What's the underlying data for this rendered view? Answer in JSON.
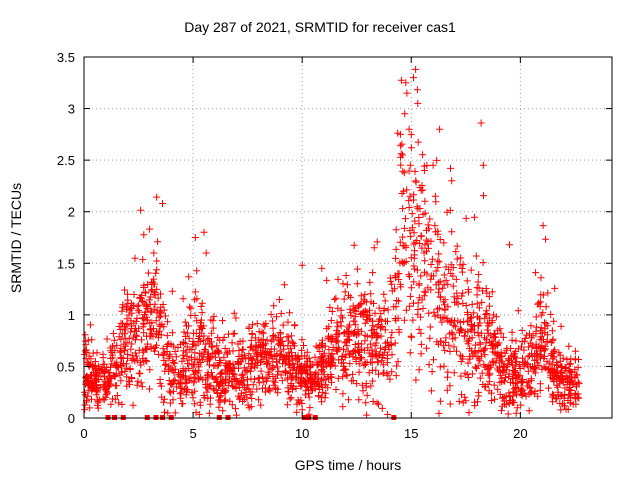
{
  "chart_data": {
    "type": "scatter",
    "title": "Day 287 of 2021, SRMTID for receiver cas1",
    "xlabel": "GPS time / hours",
    "ylabel": "SRMTID / TECUs",
    "xlim": [
      0,
      24.2
    ],
    "ylim": [
      0,
      3.5
    ],
    "xticks": [
      0,
      5,
      10,
      15,
      20
    ],
    "yticks": [
      0,
      0.5,
      1,
      1.5,
      2,
      2.5,
      3,
      3.5
    ],
    "xtick_labels": [
      "0",
      "5",
      "10",
      "15",
      "20"
    ],
    "ytick_labels": [
      "0",
      "0.5",
      "1",
      "1.5",
      "2",
      "2.5",
      "3",
      "3.5"
    ],
    "grid": true,
    "marker": "plus",
    "color": "#ff0000",
    "zero_square_markers_x": [
      1.1,
      1.4,
      1.8,
      2.9,
      3.3,
      3.6,
      4.0,
      6.2,
      6.6,
      10.1,
      10.3,
      10.6,
      14.2
    ],
    "envelope": [
      [
        0.0,
        0.45,
        0.18
      ],
      [
        0.3,
        0.4,
        0.15
      ],
      [
        0.6,
        0.35,
        0.12
      ],
      [
        1.0,
        0.35,
        0.12
      ],
      [
        1.5,
        0.5,
        0.2
      ],
      [
        2.0,
        0.7,
        0.25
      ],
      [
        2.5,
        0.8,
        0.3
      ],
      [
        3.0,
        1.05,
        0.3
      ],
      [
        3.5,
        0.85,
        0.32
      ],
      [
        4.0,
        0.4,
        0.2
      ],
      [
        4.5,
        0.45,
        0.2
      ],
      [
        5.0,
        0.6,
        0.28
      ],
      [
        5.5,
        0.7,
        0.3
      ],
      [
        6.0,
        0.5,
        0.2
      ],
      [
        6.5,
        0.45,
        0.18
      ],
      [
        7.0,
        0.4,
        0.15
      ],
      [
        7.5,
        0.45,
        0.18
      ],
      [
        8.0,
        0.55,
        0.2
      ],
      [
        8.5,
        0.55,
        0.18
      ],
      [
        9.0,
        0.6,
        0.2
      ],
      [
        9.5,
        0.5,
        0.18
      ],
      [
        10.0,
        0.4,
        0.15
      ],
      [
        10.5,
        0.35,
        0.12
      ],
      [
        11.0,
        0.5,
        0.18
      ],
      [
        11.5,
        0.65,
        0.25
      ],
      [
        12.0,
        0.7,
        0.25
      ],
      [
        12.5,
        0.8,
        0.3
      ],
      [
        13.0,
        0.75,
        0.3
      ],
      [
        13.5,
        0.75,
        0.3
      ],
      [
        14.0,
        0.8,
        0.3
      ],
      [
        14.3,
        1.2,
        0.45
      ],
      [
        14.6,
        1.95,
        0.55
      ],
      [
        15.0,
        1.8,
        0.55
      ],
      [
        15.3,
        1.5,
        0.5
      ],
      [
        15.7,
        1.5,
        0.5
      ],
      [
        16.0,
        1.2,
        0.45
      ],
      [
        16.5,
        1.1,
        0.45
      ],
      [
        17.0,
        1.0,
        0.4
      ],
      [
        17.5,
        0.9,
        0.35
      ],
      [
        18.0,
        0.8,
        0.35
      ],
      [
        18.5,
        0.7,
        0.3
      ],
      [
        19.0,
        0.5,
        0.22
      ],
      [
        19.5,
        0.4,
        0.18
      ],
      [
        20.0,
        0.45,
        0.18
      ],
      [
        20.5,
        0.6,
        0.22
      ],
      [
        21.0,
        0.75,
        0.25
      ],
      [
        21.5,
        0.5,
        0.2
      ],
      [
        22.0,
        0.35,
        0.15
      ],
      [
        22.7,
        0.35,
        0.15
      ]
    ],
    "notable_points": [
      [
        15.2,
        3.38
      ],
      [
        15.1,
        3.3
      ],
      [
        14.75,
        3.25
      ],
      [
        14.8,
        3.15
      ],
      [
        15.3,
        3.05
      ],
      [
        14.7,
        2.95
      ],
      [
        14.9,
        2.8
      ],
      [
        16.3,
        2.8
      ],
      [
        18.2,
        2.86
      ],
      [
        14.5,
        2.75
      ],
      [
        15.0,
        2.62
      ],
      [
        16.0,
        2.45
      ],
      [
        16.8,
        2.42
      ],
      [
        18.3,
        2.45
      ],
      [
        14.6,
        2.55
      ],
      [
        15.6,
        2.4
      ],
      [
        3.6,
        2.08
      ],
      [
        19.5,
        1.68
      ],
      [
        5.5,
        1.8
      ],
      [
        5.1,
        1.75
      ],
      [
        10.0,
        1.48
      ],
      [
        10.9,
        1.45
      ],
      [
        20.7,
        1.41
      ],
      [
        3.2,
        1.6
      ],
      [
        2.0,
        1.2
      ],
      [
        5.6,
        1.6
      ],
      [
        13.3,
        1.65
      ]
    ],
    "point_count": 2300
  }
}
